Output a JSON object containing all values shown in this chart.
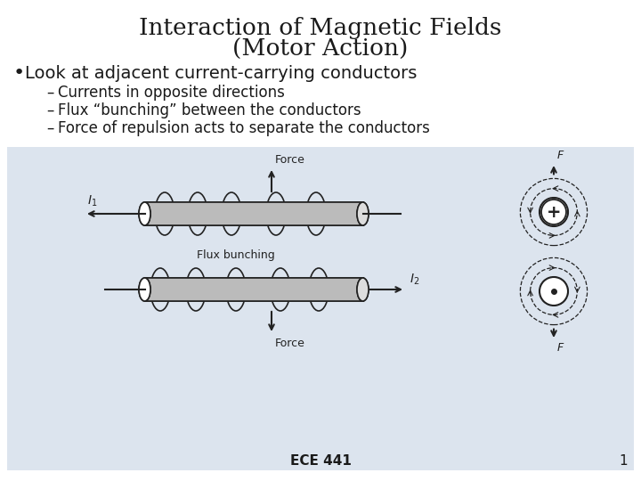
{
  "title_line1": "Interaction of Magnetic Fields",
  "title_line2": "(Motor Action)",
  "bullet": "Look at adjacent current-carrying conductors",
  "sub1": "Currents in opposite directions",
  "sub2": "Flux “bunching” between the conductors",
  "sub3": "Force of repulsion acts to separate the conductors",
  "footer": "ECE 441",
  "page_num": "1",
  "bg_color": "#ffffff",
  "diagram_bg": "#dce4ee",
  "text_color": "#1a1a1a",
  "edge_color": "#222222",
  "gray_color": "#bbbbbb"
}
